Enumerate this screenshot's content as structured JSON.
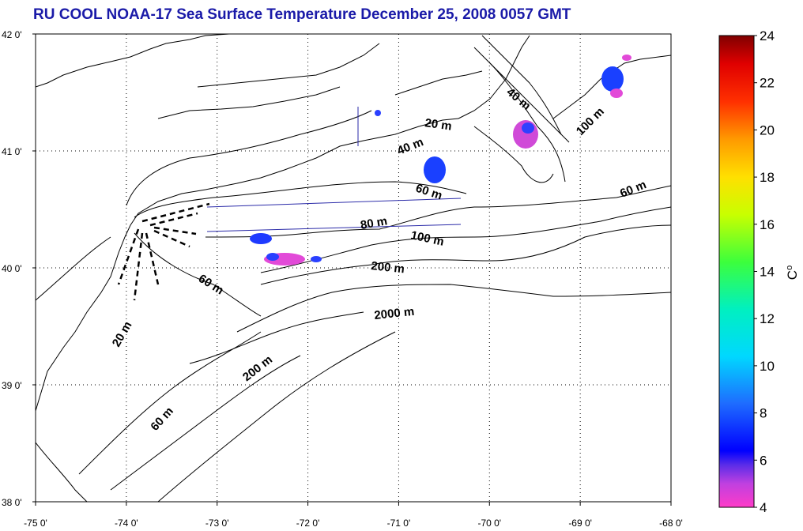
{
  "title": "RU COOL  NOAA-17 Sea Surface Temperature December 25, 2008 0057 GMT",
  "map": {
    "lon_ticks": [
      "-75 0'",
      "-74 0'",
      "-73 0'",
      "-72 0'",
      "-71 0'",
      "-70 0'",
      "-69 0'",
      "-68 0'"
    ],
    "lat_ticks": [
      "42 0'",
      "41 0'",
      "40 0'",
      "39 0'",
      "38 0'"
    ],
    "lon_range": [
      -75,
      -68
    ],
    "lat_range": [
      38,
      42
    ],
    "isobath_labels": [
      "20 m",
      "40 m",
      "40 m",
      "60 m",
      "80 m",
      "100 m",
      "200 m",
      "2000 m",
      "60 m",
      "20 m",
      "200 m",
      "60 m",
      "100 m",
      "60 m"
    ]
  },
  "colorbar": {
    "ticks": [
      "24",
      "22",
      "20",
      "18",
      "16",
      "14",
      "12",
      "10",
      "8",
      "6",
      "4"
    ],
    "unit": "C",
    "unit_superscript": "o",
    "range": [
      4,
      24
    ]
  },
  "colors": {
    "title": "#1a1aa8",
    "coastline": "#000000",
    "grid": "#000000"
  }
}
